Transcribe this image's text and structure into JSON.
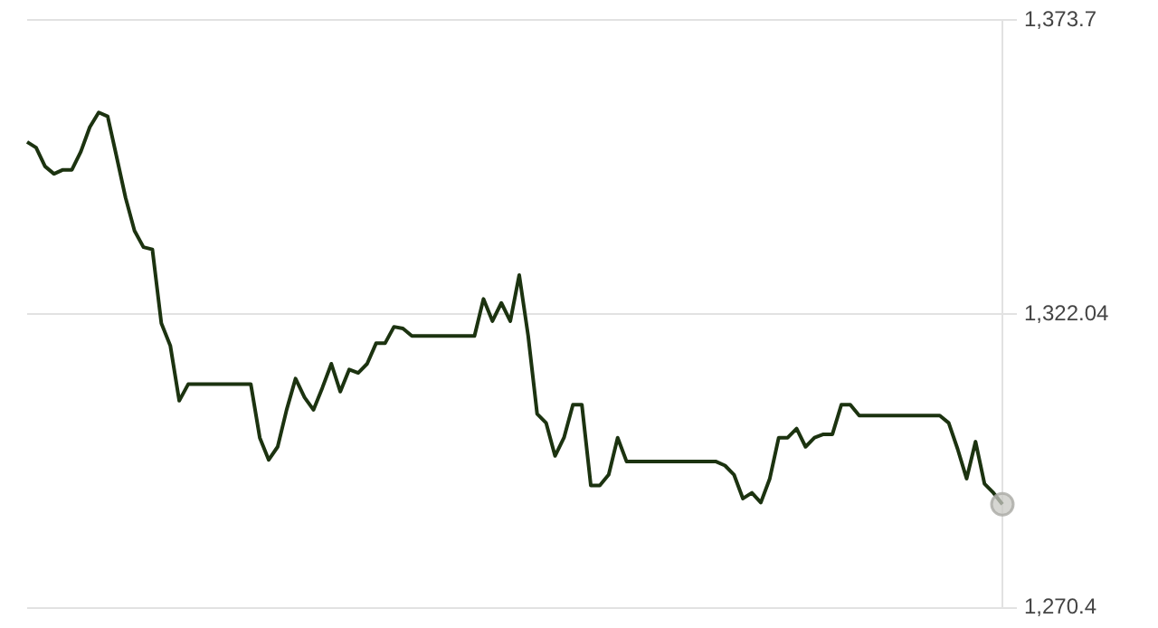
{
  "chart_data": {
    "type": "line",
    "categories": [
      null,
      null,
      null,
      null,
      null,
      null,
      null,
      null,
      null,
      null,
      null,
      null,
      null,
      null,
      null,
      null,
      null,
      null,
      null,
      null,
      null,
      null,
      null,
      null,
      null,
      null,
      null,
      null,
      null,
      null,
      null,
      null,
      null,
      null,
      null,
      null,
      null,
      null,
      null,
      null,
      null,
      null,
      null,
      null,
      null,
      null,
      null,
      null,
      null,
      null,
      null,
      null,
      null,
      null,
      null,
      null,
      null,
      null,
      null,
      null,
      null,
      null,
      null,
      null,
      null,
      null,
      null,
      null,
      null,
      null,
      null,
      null,
      null,
      null,
      null,
      null,
      null,
      null,
      null,
      null,
      null,
      null,
      null,
      null,
      null,
      null,
      null,
      null,
      null,
      null,
      null,
      null,
      null,
      null,
      null,
      null,
      null,
      null,
      null,
      null,
      null,
      null,
      null,
      null,
      null,
      null,
      null,
      null,
      null,
      null
    ],
    "series": [
      {
        "color": "#1c3310",
        "values": [
          1352.3,
          1351.3,
          1348.0,
          1346.7,
          1347.4,
          1347.4,
          1350.6,
          1354.9,
          1357.5,
          1356.8,
          1349.7,
          1342.5,
          1336.7,
          1333.8,
          1333.4,
          1320.4,
          1316.5,
          1306.8,
          1309.7,
          1309.7,
          1309.7,
          1309.7,
          1309.7,
          1309.7,
          1309.7,
          1309.7,
          1300.3,
          1296.4,
          1298.7,
          1305.2,
          1310.7,
          1307.4,
          1305.2,
          1309.1,
          1313.3,
          1308.4,
          1312.3,
          1311.7,
          1313.3,
          1316.9,
          1316.9,
          1319.8,
          1319.5,
          1318.2,
          1318.2,
          1318.2,
          1318.2,
          1318.2,
          1318.2,
          1318.2,
          1318.2,
          1324.7,
          1320.8,
          1324.0,
          1320.8,
          1328.9,
          1318.2,
          1304.5,
          1302.9,
          1297.1,
          1300.3,
          1306.1,
          1306.1,
          1291.9,
          1291.9,
          1293.8,
          1300.3,
          1296.1,
          1296.1,
          1296.1,
          1296.1,
          1296.1,
          1296.1,
          1296.1,
          1296.1,
          1296.1,
          1296.1,
          1296.1,
          1295.4,
          1293.8,
          1289.6,
          1290.6,
          1288.9,
          1293.1,
          1300.3,
          1300.3,
          1301.9,
          1298.7,
          1300.3,
          1300.9,
          1300.9,
          1306.1,
          1306.1,
          1304.2,
          1304.2,
          1304.2,
          1304.2,
          1304.2,
          1304.2,
          1304.2,
          1304.2,
          1304.2,
          1304.2,
          1302.9,
          1298.3,
          1293.1,
          1299.6,
          1292.2,
          1290.6,
          1288.6
        ]
      }
    ],
    "ylim": [
      1270.4,
      1373.7
    ],
    "yticks": [
      {
        "value": 1270.4,
        "label": "1,270.4"
      },
      {
        "value": 1322.04,
        "label": "1,322.04"
      },
      {
        "value": 1373.7,
        "label": "1,373.7"
      }
    ],
    "grid": "y",
    "legend": false,
    "tick_labels": "y",
    "marker": "none",
    "line_style": "solid"
  }
}
